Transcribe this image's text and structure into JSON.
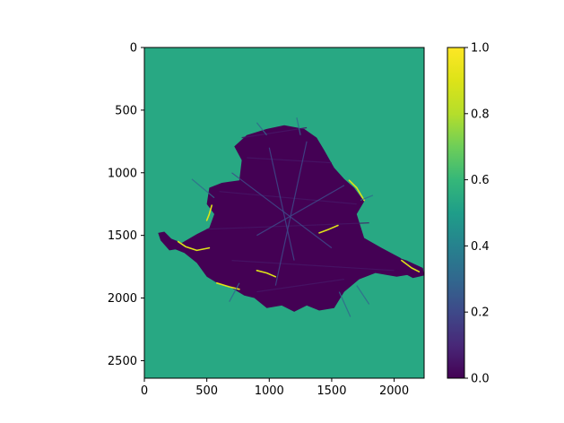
{
  "chart_data": {
    "type": "heatmap",
    "title": "",
    "xlabel": "",
    "ylabel": "",
    "xlim": [
      0,
      2240
    ],
    "ylim": [
      2640,
      0
    ],
    "y_axis_inverted": true,
    "x_ticks": [
      0,
      500,
      1000,
      1500,
      2000
    ],
    "x_tick_labels": [
      "0",
      "500",
      "1000",
      "1500",
      "2000"
    ],
    "y_ticks": [
      0,
      500,
      1000,
      1500,
      2000,
      2500
    ],
    "y_tick_labels": [
      "0",
      "500",
      "1000",
      "1500",
      "2000",
      "2500"
    ],
    "background_value": 0.54,
    "colormap": "viridis",
    "colorbar": {
      "vmin": 0.0,
      "vmax": 1.0,
      "ticks": [
        0.0,
        0.2,
        0.4,
        0.6,
        0.8,
        1.0
      ],
      "tick_labels": [
        "0.0",
        "0.2",
        "0.4",
        "0.6",
        "0.8",
        "1.0"
      ],
      "placement": "right"
    },
    "regions": [
      {
        "name": "low-value blob",
        "value": 0.0,
        "outline": [
          [
            200,
            1520
          ],
          [
            300,
            1560
          ],
          [
            420,
            1490
          ],
          [
            520,
            1440
          ],
          [
            560,
            1330
          ],
          [
            500,
            1250
          ],
          [
            520,
            1120
          ],
          [
            620,
            1080
          ],
          [
            760,
            1060
          ],
          [
            780,
            900
          ],
          [
            720,
            790
          ],
          [
            820,
            700
          ],
          [
            980,
            650
          ],
          [
            1120,
            620
          ],
          [
            1280,
            650
          ],
          [
            1380,
            720
          ],
          [
            1440,
            820
          ],
          [
            1520,
            960
          ],
          [
            1600,
            1050
          ],
          [
            1680,
            1120
          ],
          [
            1760,
            1230
          ],
          [
            1700,
            1330
          ],
          [
            1760,
            1520
          ],
          [
            1900,
            1600
          ],
          [
            2050,
            1680
          ],
          [
            2130,
            1750
          ],
          [
            2200,
            1800
          ],
          [
            2020,
            1830
          ],
          [
            1850,
            1800
          ],
          [
            1720,
            1850
          ],
          [
            1600,
            1950
          ],
          [
            1520,
            2080
          ],
          [
            1400,
            2100
          ],
          [
            1300,
            2060
          ],
          [
            1200,
            2110
          ],
          [
            1100,
            2060
          ],
          [
            980,
            2080
          ],
          [
            880,
            2000
          ],
          [
            800,
            1980
          ],
          [
            700,
            1920
          ],
          [
            600,
            1890
          ],
          [
            500,
            1830
          ],
          [
            420,
            1720
          ],
          [
            320,
            1640
          ],
          [
            220,
            1600
          ]
        ]
      },
      {
        "name": "left arm",
        "value": 0.0,
        "outline": [
          [
            110,
            1480
          ],
          [
            160,
            1470
          ],
          [
            230,
            1540
          ],
          [
            260,
            1610
          ],
          [
            200,
            1620
          ],
          [
            130,
            1540
          ]
        ]
      },
      {
        "name": "right arm",
        "value": 0.0,
        "outline": [
          [
            1950,
            1650
          ],
          [
            2100,
            1700
          ],
          [
            2230,
            1760
          ],
          [
            2240,
            1820
          ],
          [
            2150,
            1840
          ],
          [
            2000,
            1760
          ]
        ]
      }
    ],
    "highlights": [
      {
        "value": 0.9,
        "path": [
          [
            270,
            1550
          ],
          [
            330,
            1590
          ],
          [
            420,
            1620
          ],
          [
            520,
            1600
          ]
        ]
      },
      {
        "value": 0.9,
        "path": [
          [
            580,
            1880
          ],
          [
            680,
            1910
          ],
          [
            760,
            1930
          ]
        ]
      },
      {
        "value": 0.9,
        "path": [
          [
            1640,
            1060
          ],
          [
            1700,
            1120
          ],
          [
            1760,
            1220
          ]
        ]
      },
      {
        "value": 0.9,
        "path": [
          [
            2060,
            1700
          ],
          [
            2140,
            1760
          ],
          [
            2200,
            1790
          ]
        ]
      },
      {
        "value": 0.9,
        "path": [
          [
            1400,
            1480
          ],
          [
            1480,
            1450
          ],
          [
            1550,
            1420
          ]
        ]
      },
      {
        "value": 0.9,
        "path": [
          [
            900,
            1780
          ],
          [
            980,
            1800
          ],
          [
            1050,
            1830
          ]
        ]
      },
      {
        "value": 0.9,
        "path": [
          [
            540,
            1260
          ],
          [
            520,
            1330
          ],
          [
            500,
            1380
          ]
        ]
      }
    ],
    "streaks": [
      {
        "value": 0.05,
        "from": [
          780,
          720
        ],
        "to": [
          1300,
          640
        ]
      },
      {
        "value": 0.05,
        "from": [
          820,
          880
        ],
        "to": [
          1500,
          920
        ]
      },
      {
        "value": 0.05,
        "from": [
          600,
          1150
        ],
        "to": [
          1700,
          1250
        ]
      },
      {
        "value": 0.05,
        "from": [
          500,
          1450
        ],
        "to": [
          1800,
          1400
        ]
      },
      {
        "value": 0.05,
        "from": [
          700,
          1700
        ],
        "to": [
          2000,
          1780
        ]
      },
      {
        "value": 0.05,
        "from": [
          900,
          1950
        ],
        "to": [
          1600,
          1850
        ]
      },
      {
        "value": 0.2,
        "from": [
          1000,
          800
        ],
        "to": [
          1200,
          1700
        ]
      },
      {
        "value": 0.2,
        "from": [
          1300,
          750
        ],
        "to": [
          1050,
          1900
        ]
      },
      {
        "value": 0.2,
        "from": [
          700,
          1000
        ],
        "to": [
          1500,
          1600
        ]
      },
      {
        "value": 0.2,
        "from": [
          1600,
          1100
        ],
        "to": [
          900,
          1500
        ]
      },
      {
        "value": 0.3,
        "from": [
          680,
          2030
        ],
        "to": [
          760,
          1880
        ]
      },
      {
        "value": 0.3,
        "from": [
          1650,
          2150
        ],
        "to": [
          1560,
          1950
        ]
      },
      {
        "value": 0.3,
        "from": [
          380,
          1050
        ],
        "to": [
          560,
          1200
        ]
      },
      {
        "value": 0.3,
        "from": [
          1730,
          1220
        ],
        "to": [
          1830,
          1180
        ]
      },
      {
        "value": 0.3,
        "from": [
          1220,
          560
        ],
        "to": [
          1250,
          700
        ]
      },
      {
        "value": 0.3,
        "from": [
          900,
          600
        ],
        "to": [
          980,
          700
        ]
      },
      {
        "value": 0.3,
        "from": [
          1800,
          2050
        ],
        "to": [
          1700,
          1900
        ]
      }
    ]
  }
}
